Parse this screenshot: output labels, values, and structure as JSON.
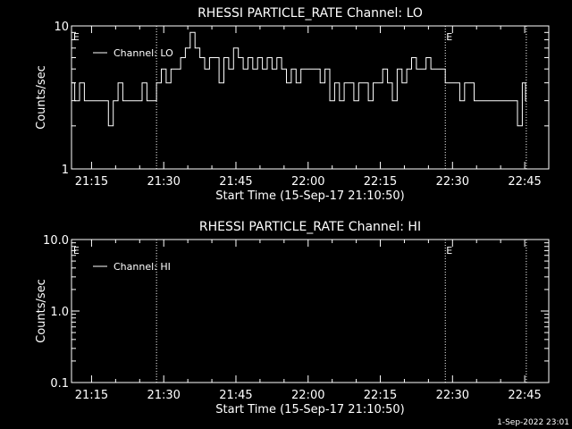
{
  "footer_stamp": "1-Sep-2022 23:01",
  "colors": {
    "background": "#000000",
    "foreground": "#ffffff"
  },
  "chart_data": [
    {
      "type": "line",
      "title": "RHESSI PARTICLE_RATE Channel: LO",
      "xlabel": "Start Time (15-Sep-17 21:10:50)",
      "ylabel": "Counts/sec",
      "yscale": "log",
      "ylim": [
        1,
        10
      ],
      "xlim": [
        "21:10:50",
        "22:50:00"
      ],
      "x_ticks": [
        "21:15",
        "21:30",
        "21:45",
        "22:00",
        "22:15",
        "22:30",
        "22:45"
      ],
      "y_ticks": [
        "1",
        "10"
      ],
      "legend": {
        "placement": "top-left",
        "entries": [
          "Channel: LO"
        ]
      },
      "event_lines": [
        "21:28:30",
        "22:28:30",
        "22:45:20"
      ],
      "event_markers": [
        {
          "label": "E",
          "x": "21:11:00"
        },
        {
          "label": "E",
          "x": "22:28:30"
        }
      ],
      "series": [
        {
          "name": "Channel: LO",
          "points": [
            [
              "21:11:00",
              4
            ],
            [
              "21:12:00",
              3
            ],
            [
              "21:13:00",
              4
            ],
            [
              "21:14:00",
              3
            ],
            [
              "21:15:00",
              3
            ],
            [
              "21:16:00",
              3
            ],
            [
              "21:17:00",
              3
            ],
            [
              "21:18:00",
              3
            ],
            [
              "21:19:00",
              2
            ],
            [
              "21:20:00",
              3
            ],
            [
              "21:21:00",
              4
            ],
            [
              "21:22:00",
              3
            ],
            [
              "21:23:00",
              3
            ],
            [
              "21:24:00",
              3
            ],
            [
              "21:25:00",
              3
            ],
            [
              "21:26:00",
              4
            ],
            [
              "21:27:00",
              3
            ],
            [
              "21:28:00",
              3
            ],
            [
              "21:29:00",
              4
            ],
            [
              "21:30:00",
              5
            ],
            [
              "21:31:00",
              4
            ],
            [
              "21:32:00",
              5
            ],
            [
              "21:33:00",
              5
            ],
            [
              "21:34:00",
              6
            ],
            [
              "21:35:00",
              7
            ],
            [
              "21:36:00",
              9
            ],
            [
              "21:37:00",
              7
            ],
            [
              "21:38:00",
              6
            ],
            [
              "21:39:00",
              5
            ],
            [
              "21:40:00",
              6
            ],
            [
              "21:41:00",
              6
            ],
            [
              "21:42:00",
              4
            ],
            [
              "21:43:00",
              6
            ],
            [
              "21:44:00",
              5
            ],
            [
              "21:45:00",
              7
            ],
            [
              "21:46:00",
              6
            ],
            [
              "21:47:00",
              5
            ],
            [
              "21:48:00",
              6
            ],
            [
              "21:49:00",
              5
            ],
            [
              "21:50:00",
              6
            ],
            [
              "21:51:00",
              5
            ],
            [
              "21:52:00",
              6
            ],
            [
              "21:53:00",
              5
            ],
            [
              "21:54:00",
              6
            ],
            [
              "21:55:00",
              5
            ],
            [
              "21:56:00",
              4
            ],
            [
              "21:57:00",
              5
            ],
            [
              "21:58:00",
              4
            ],
            [
              "21:59:00",
              5
            ],
            [
              "22:00:00",
              5
            ],
            [
              "22:01:00",
              5
            ],
            [
              "22:02:00",
              5
            ],
            [
              "22:03:00",
              4
            ],
            [
              "22:04:00",
              5
            ],
            [
              "22:05:00",
              3
            ],
            [
              "22:06:00",
              4
            ],
            [
              "22:07:00",
              3
            ],
            [
              "22:08:00",
              4
            ],
            [
              "22:09:00",
              4
            ],
            [
              "22:10:00",
              3
            ],
            [
              "22:11:00",
              4
            ],
            [
              "22:12:00",
              4
            ],
            [
              "22:13:00",
              3
            ],
            [
              "22:14:00",
              4
            ],
            [
              "22:15:00",
              4
            ],
            [
              "22:16:00",
              5
            ],
            [
              "22:17:00",
              4
            ],
            [
              "22:18:00",
              3
            ],
            [
              "22:19:00",
              5
            ],
            [
              "22:20:00",
              4
            ],
            [
              "22:21:00",
              5
            ],
            [
              "22:22:00",
              6
            ],
            [
              "22:23:00",
              5
            ],
            [
              "22:24:00",
              5
            ],
            [
              "22:25:00",
              6
            ],
            [
              "22:26:00",
              5
            ],
            [
              "22:27:00",
              5
            ],
            [
              "22:28:00",
              5
            ],
            [
              "22:29:00",
              4
            ],
            [
              "22:30:00",
              4
            ],
            [
              "22:31:00",
              4
            ],
            [
              "22:32:00",
              3
            ],
            [
              "22:33:00",
              4
            ],
            [
              "22:34:00",
              4
            ],
            [
              "22:35:00",
              3
            ],
            [
              "22:36:00",
              3
            ],
            [
              "22:37:00",
              3
            ],
            [
              "22:38:00",
              3
            ],
            [
              "22:39:00",
              3
            ],
            [
              "22:40:00",
              3
            ],
            [
              "22:41:00",
              3
            ],
            [
              "22:42:00",
              3
            ],
            [
              "22:43:00",
              3
            ],
            [
              "22:44:00",
              2
            ],
            [
              "22:45:00",
              4
            ],
            [
              "22:45:20",
              3
            ]
          ]
        }
      ]
    },
    {
      "type": "line",
      "title": "RHESSI PARTICLE_RATE Channel: HI",
      "xlabel": "Start Time (15-Sep-17 21:10:50)",
      "ylabel": "Counts/sec",
      "yscale": "log",
      "ylim": [
        0.1,
        10
      ],
      "xlim": [
        "21:10:50",
        "22:50:00"
      ],
      "x_ticks": [
        "21:15",
        "21:30",
        "21:45",
        "22:00",
        "22:15",
        "22:30",
        "22:45"
      ],
      "y_ticks": [
        "0.1",
        "1.0",
        "10.0"
      ],
      "legend": {
        "placement": "top-left",
        "entries": [
          "Channel: HI"
        ]
      },
      "event_lines": [
        "21:28:30",
        "22:28:30",
        "22:45:20"
      ],
      "event_markers": [
        {
          "label": "E",
          "x": "21:11:00"
        },
        {
          "label": "E",
          "x": "22:28:30"
        }
      ],
      "series": [
        {
          "name": "Channel: HI",
          "points": []
        }
      ]
    }
  ]
}
